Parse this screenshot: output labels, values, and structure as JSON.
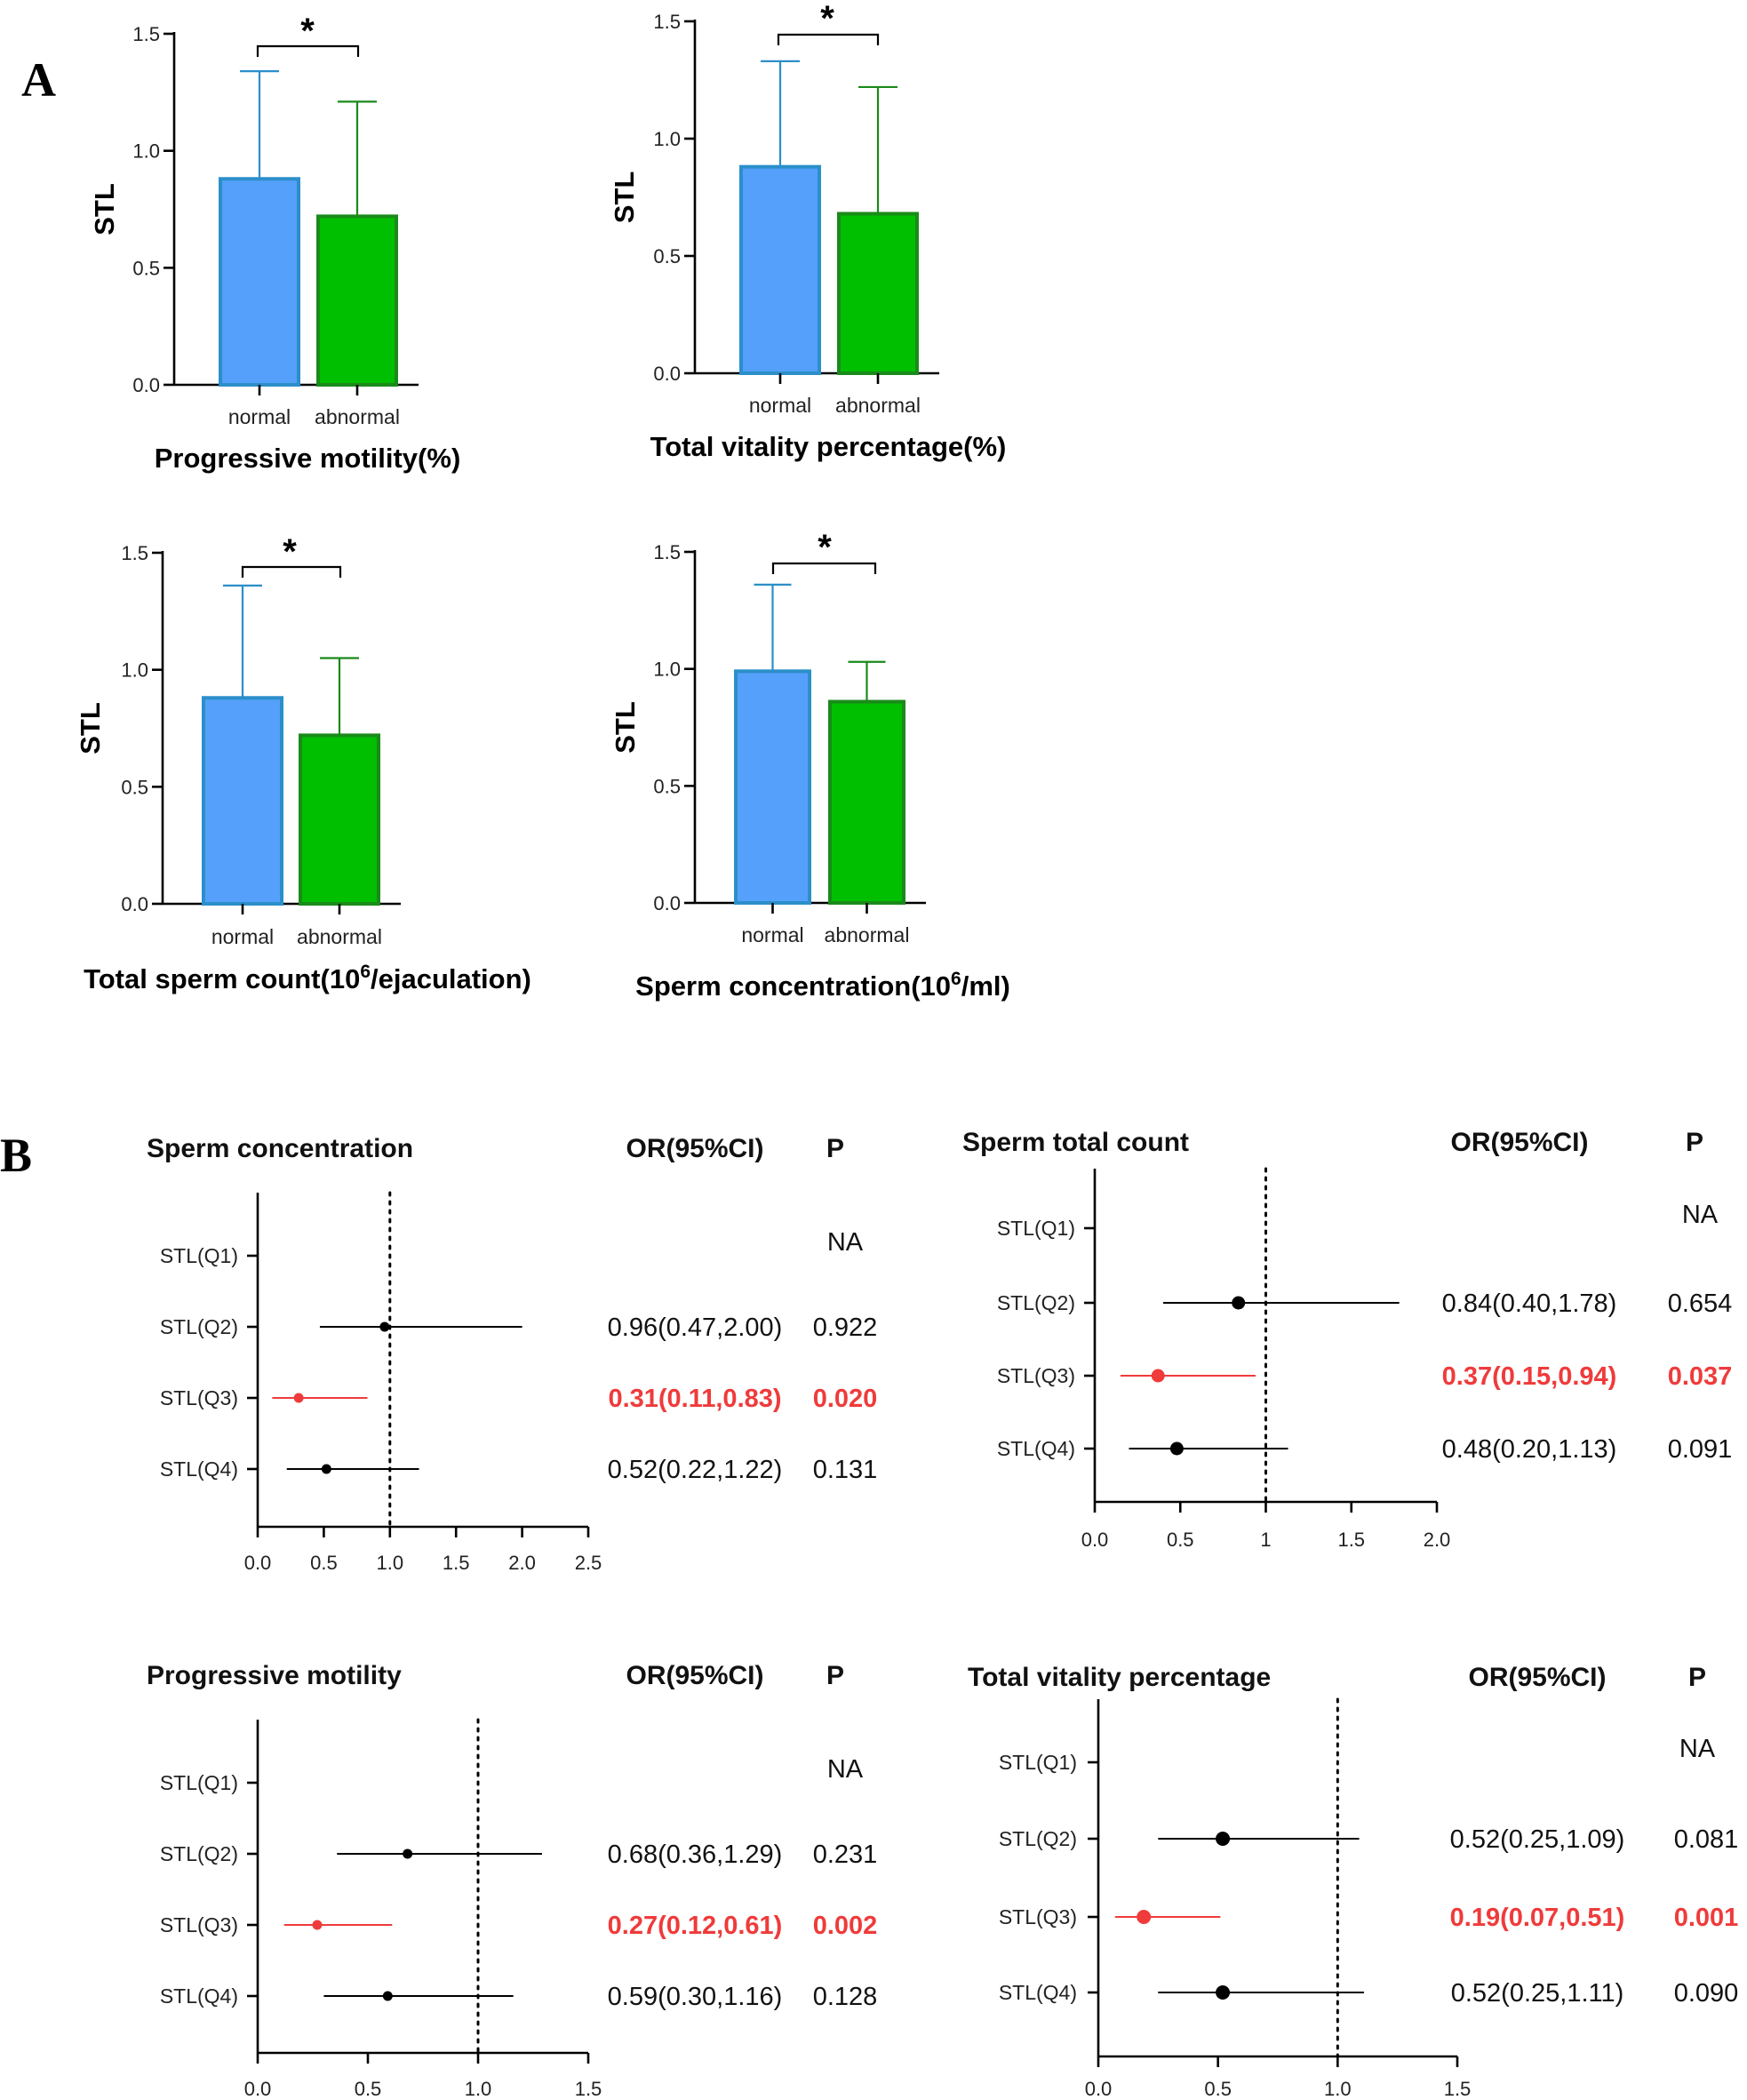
{
  "panel_labels": [
    "A",
    "B"
  ],
  "chart_data": [
    {
      "type": "bar",
      "panel": "A",
      "title": "Progressive motility(%)",
      "ylabel": "STL",
      "categories": [
        "normal",
        "abnormal"
      ],
      "values": [
        0.88,
        0.72
      ],
      "error_upper": [
        1.34,
        1.21
      ],
      "colors": [
        "#55a0fa",
        "#00bf00"
      ],
      "yticks": [
        "0.0",
        "0.5",
        "1.0",
        "1.5"
      ],
      "ylim": [
        0,
        1.5
      ],
      "significance": "*"
    },
    {
      "type": "bar",
      "panel": "A",
      "title": "Total vitality percentage(%)",
      "ylabel": "STL",
      "categories": [
        "normal",
        "abnormal"
      ],
      "values": [
        0.88,
        0.68
      ],
      "error_upper": [
        1.33,
        1.22
      ],
      "colors": [
        "#55a0fa",
        "#00bf00"
      ],
      "yticks": [
        "0.0",
        "0.5",
        "1.0",
        "1.5"
      ],
      "ylim": [
        0,
        1.5
      ],
      "significance": "*"
    },
    {
      "type": "bar",
      "panel": "A",
      "title": "Total sperm count(10",
      "title_sup": "6",
      "title_tail": "/ejaculation)",
      "ylabel": "STL",
      "categories": [
        "normal",
        "abnormal"
      ],
      "values": [
        0.88,
        0.72
      ],
      "error_upper": [
        1.36,
        1.05
      ],
      "colors": [
        "#55a0fa",
        "#00bf00"
      ],
      "yticks": [
        "0.0",
        "0.5",
        "1.0",
        "1.5"
      ],
      "ylim": [
        0,
        1.5
      ],
      "significance": "*"
    },
    {
      "type": "bar",
      "panel": "A",
      "title": "Sperm concentration(10",
      "title_sup": "6",
      "title_tail": "/ml)",
      "ylabel": "STL",
      "categories": [
        "normal",
        "abnormal"
      ],
      "values": [
        0.99,
        0.86
      ],
      "error_upper": [
        1.36,
        1.03
      ],
      "colors": [
        "#55a0fa",
        "#00bf00"
      ],
      "yticks": [
        "0.0",
        "0.5",
        "1.0",
        "1.5"
      ],
      "ylim": [
        0,
        1.5
      ],
      "significance": "*"
    },
    {
      "type": "forest",
      "panel": "B",
      "title": "Sperm concentration",
      "or_header": "OR(95%CI)",
      "p_header": "P",
      "xlim": [
        0,
        2.5
      ],
      "xticks": [
        "0.0",
        "0.5",
        "1.0",
        "1.5",
        "2.0",
        "2.5"
      ],
      "xtick_values": [
        0,
        0.5,
        1.0,
        1.5,
        2.0,
        2.5
      ],
      "reference": 1.0,
      "rows": [
        {
          "label": "STL(Q1)",
          "or_text": "",
          "p": "NA"
        },
        {
          "label": "STL(Q2)",
          "or": 0.96,
          "lo": 0.47,
          "hi": 2.0,
          "or_text": "0.96(0.47,2.00)",
          "p": "0.922",
          "sig": false
        },
        {
          "label": "STL(Q3)",
          "or": 0.31,
          "lo": 0.11,
          "hi": 0.83,
          "or_text": "0.31(0.11,0.83)",
          "p": "0.020",
          "sig": true
        },
        {
          "label": "STL(Q4)",
          "or": 0.52,
          "lo": 0.22,
          "hi": 1.22,
          "or_text": "0.52(0.22,1.22)",
          "p": "0.131",
          "sig": false
        }
      ]
    },
    {
      "type": "forest",
      "panel": "B",
      "title": "Sperm total count",
      "or_header": "OR(95%CI)",
      "p_header": "P",
      "xlim": [
        0,
        2.0
      ],
      "xticks": [
        "0.0",
        "0.5",
        "1",
        "1.5",
        "2.0"
      ],
      "xtick_values": [
        0,
        0.5,
        1.0,
        1.5,
        2.0
      ],
      "reference": 1.0,
      "rows": [
        {
          "label": "STL(Q1)",
          "or_text": "",
          "p": "NA"
        },
        {
          "label": "STL(Q2)",
          "or": 0.84,
          "lo": 0.4,
          "hi": 1.78,
          "or_text": "0.84(0.40,1.78)",
          "p": "0.654",
          "sig": false
        },
        {
          "label": "STL(Q3)",
          "or": 0.37,
          "lo": 0.15,
          "hi": 0.94,
          "or_text": "0.37(0.15,0.94)",
          "p": "0.037",
          "sig": true
        },
        {
          "label": "STL(Q4)",
          "or": 0.48,
          "lo": 0.2,
          "hi": 1.13,
          "or_text": "0.48(0.20,1.13)",
          "p": "0.091",
          "sig": false
        }
      ]
    },
    {
      "type": "forest",
      "panel": "B",
      "title": "Progressive motility",
      "or_header": "OR(95%CI)",
      "p_header": "P",
      "xlim": [
        0,
        1.5
      ],
      "xticks": [
        "0.0",
        "0.5",
        "1.0",
        "1.5"
      ],
      "xtick_values": [
        0,
        0.5,
        1.0,
        1.5
      ],
      "reference": 1.0,
      "rows": [
        {
          "label": "STL(Q1)",
          "or_text": "",
          "p": "NA"
        },
        {
          "label": "STL(Q2)",
          "or": 0.68,
          "lo": 0.36,
          "hi": 1.29,
          "or_text": "0.68(0.36,1.29)",
          "p": "0.231",
          "sig": false
        },
        {
          "label": "STL(Q3)",
          "or": 0.27,
          "lo": 0.12,
          "hi": 0.61,
          "or_text": "0.27(0.12,0.61)",
          "p": "0.002",
          "sig": true
        },
        {
          "label": "STL(Q4)",
          "or": 0.59,
          "lo": 0.3,
          "hi": 1.16,
          "or_text": "0.59(0.30,1.16)",
          "p": "0.128",
          "sig": false
        }
      ]
    },
    {
      "type": "forest",
      "panel": "B",
      "title": "Total vitality percentage",
      "or_header": "OR(95%CI)",
      "p_header": "P",
      "xlim": [
        0,
        1.5
      ],
      "xticks": [
        "0.0",
        "0.5",
        "1.0",
        "1.5"
      ],
      "xtick_values": [
        0,
        0.5,
        1.0,
        1.5
      ],
      "reference": 1.0,
      "rows": [
        {
          "label": "STL(Q1)",
          "or_text": "",
          "p": "NA"
        },
        {
          "label": "STL(Q2)",
          "or": 0.52,
          "lo": 0.25,
          "hi": 1.09,
          "or_text": "0.52(0.25,1.09)",
          "p": "0.081",
          "sig": false
        },
        {
          "label": "STL(Q3)",
          "or": 0.19,
          "lo": 0.07,
          "hi": 0.51,
          "or_text": "0.19(0.07,0.51)",
          "p": "0.001",
          "sig": true
        },
        {
          "label": "STL(Q4)",
          "or": 0.52,
          "lo": 0.25,
          "hi": 1.11,
          "or_text": "0.52(0.25,1.11)",
          "p": "0.090",
          "sig": false
        }
      ]
    }
  ],
  "colors": {
    "normal_fill": "#55a0fa",
    "normal_stroke": "#2b8fc9",
    "abnormal_fill": "#00bf00",
    "abnormal_stroke": "#1a8a1a",
    "significant": "#ef3b3b",
    "point": "#000000"
  }
}
